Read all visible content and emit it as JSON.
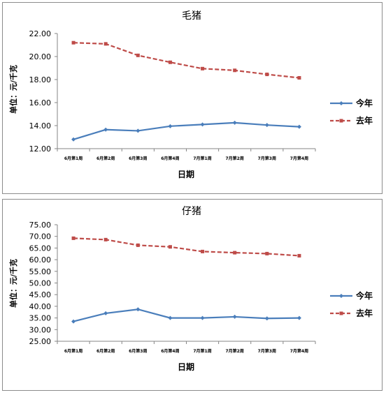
{
  "chart_data": [
    {
      "type": "line",
      "title": "毛猪",
      "xlabel": "日期",
      "ylabel": "单位：元/千克",
      "ylim": [
        12,
        22
      ],
      "ytick_labels": [
        "12.00",
        "14.00",
        "16.00",
        "18.00",
        "20.00",
        "22.00"
      ],
      "categories": [
        "6月第1周",
        "6月第2周",
        "6月第3周",
        "6月第4周",
        "7月第1周",
        "7月第2周",
        "7月第3周",
        "7月第4周"
      ],
      "legend_position": "right",
      "grid": false,
      "series": [
        {
          "name": "今年",
          "color": "#4a7ebb",
          "style": "solid",
          "marker": "diamond",
          "values": [
            12.8,
            13.65,
            13.55,
            13.95,
            14.1,
            14.25,
            14.05,
            13.9
          ]
        },
        {
          "name": "去年",
          "color": "#be4b48",
          "style": "dashed",
          "marker": "square",
          "values": [
            21.2,
            21.1,
            20.1,
            19.5,
            18.95,
            18.8,
            18.45,
            18.15
          ]
        }
      ]
    },
    {
      "type": "line",
      "title": "仔猪",
      "xlabel": "日期",
      "ylabel": "单位：元/千克",
      "ylim": [
        25,
        75
      ],
      "ytick_labels": [
        "25.00",
        "30.00",
        "35.00",
        "40.00",
        "45.00",
        "50.00",
        "55.00",
        "60.00",
        "65.00",
        "70.00",
        "75.00"
      ],
      "categories": [
        "6月第1周",
        "6月第2周",
        "6月第3周",
        "6月第4周",
        "7月第1周",
        "7月第2周",
        "7月第3周",
        "7月第4周"
      ],
      "legend_position": "right",
      "grid": false,
      "series": [
        {
          "name": "今年",
          "color": "#4a7ebb",
          "style": "solid",
          "marker": "diamond",
          "values": [
            33.5,
            37.0,
            38.7,
            35.0,
            35.0,
            35.5,
            34.8,
            35.0
          ]
        },
        {
          "name": "去年",
          "color": "#be4b48",
          "style": "dashed",
          "marker": "square",
          "values": [
            69.2,
            68.6,
            66.2,
            65.5,
            63.5,
            63.0,
            62.6,
            61.7
          ]
        }
      ]
    }
  ]
}
